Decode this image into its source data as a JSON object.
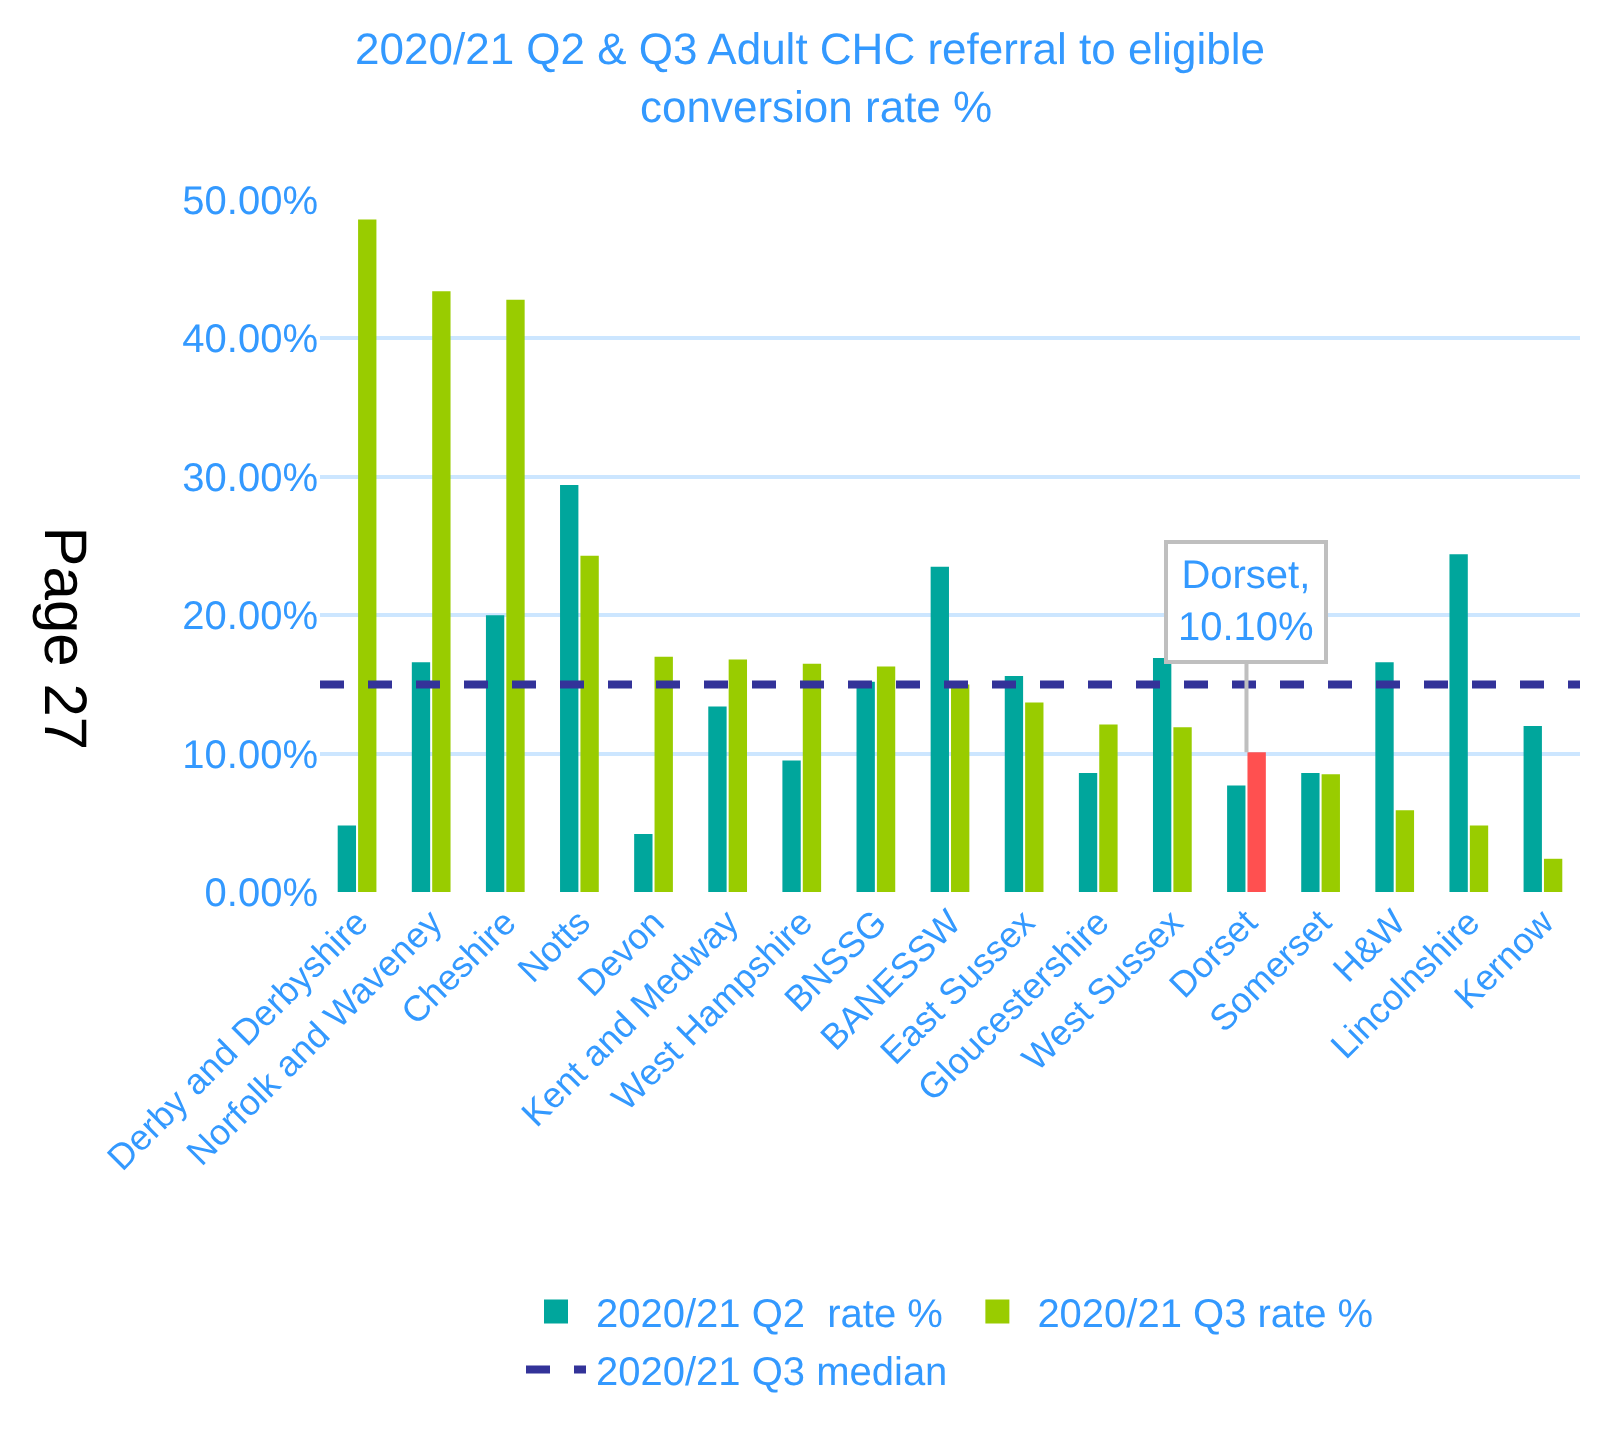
{
  "chart_data": {
    "type": "bar",
    "title": "2020/21 Q2 & Q3 Adult CHC referral to eligible conversion rate %",
    "categories": [
      "Derby and Derbyshire",
      "Norfolk and Waveney",
      "Cheshire",
      "Notts",
      "Devon",
      "Kent and Medway",
      "West Hampshire",
      "BNSSG",
      "BANESSW",
      "East Sussex",
      "Gloucestershire",
      "West Sussex",
      "Dorset",
      "Somerset",
      "H&W",
      "Lincolnshire",
      "Kernow"
    ],
    "series": [
      {
        "name": "2020/21 Q2  rate %",
        "color": "#00a69c",
        "values": [
          4.8,
          16.6,
          20.0,
          29.4,
          4.2,
          13.4,
          9.5,
          15.2,
          23.5,
          15.6,
          8.6,
          16.9,
          7.7,
          8.6,
          16.6,
          24.4,
          12.0
        ]
      },
      {
        "name": "2020/21 Q3 rate %",
        "color": "#99cc00",
        "colors": [
          "#99cc00",
          "#99cc00",
          "#99cc00",
          "#99cc00",
          "#99cc00",
          "#99cc00",
          "#99cc00",
          "#99cc00",
          "#99cc00",
          "#99cc00",
          "#99cc00",
          "#99cc00",
          "#ff5050",
          "#99cc00",
          "#99cc00",
          "#99cc00",
          "#99cc00"
        ],
        "values": [
          48.6,
          43.4,
          42.8,
          24.3,
          17.0,
          16.8,
          16.5,
          16.3,
          15.0,
          13.7,
          12.1,
          11.9,
          10.1,
          8.5,
          5.9,
          4.8,
          2.4
        ]
      }
    ],
    "ref_lines": [
      {
        "axis": "y",
        "value": 15.0,
        "label": "2020/21 Q3 median",
        "color": "#333399",
        "line_style": "dashed"
      }
    ],
    "annotations": [
      {
        "text": "Dorset, 10.10%",
        "x": "Dorset",
        "y": 10.1
      },
      "Page 27"
    ],
    "ylim": [
      0,
      50
    ],
    "yticks": [
      {
        "value": 0,
        "label": "0.00%"
      },
      {
        "value": 10,
        "label": "10.00%"
      },
      {
        "value": 20,
        "label": "20.00%"
      },
      {
        "value": 30,
        "label": "30.00%"
      },
      {
        "value": 40,
        "label": "40.00%"
      },
      {
        "value": 50,
        "label": "50.00%"
      }
    ],
    "grid": "y",
    "legend": "bottom"
  }
}
